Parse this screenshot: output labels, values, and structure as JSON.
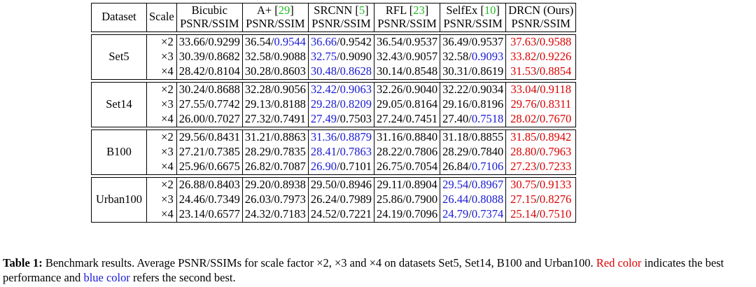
{
  "table": {
    "header_dataset": "Dataset",
    "header_scale": "Scale",
    "metric_label": "PSNR/SSIM",
    "methods": [
      {
        "name": "Bicubic",
        "ref": ""
      },
      {
        "name": "A+ [",
        "ref": "29",
        "close": "]"
      },
      {
        "name": "SRCNN [",
        "ref": "5",
        "close": "]"
      },
      {
        "name": "RFL [",
        "ref": "23",
        "close": "]"
      },
      {
        "name": "SelfEx [",
        "ref": "10",
        "close": "]"
      },
      {
        "name": "DRCN (Ours)",
        "ref": ""
      }
    ],
    "datasets": [
      {
        "name": "Set5",
        "rows": [
          {
            "scale": "×2",
            "cells": [
              {
                "psnr": "33.66",
                "ssim": "0.9299",
                "pc": "",
                "sc": ""
              },
              {
                "psnr": "36.54",
                "ssim": "0.9544",
                "pc": "",
                "sc": "blue"
              },
              {
                "psnr": "36.66",
                "ssim": "0.9542",
                "pc": "blue",
                "sc": ""
              },
              {
                "psnr": "36.54",
                "ssim": "0.9537",
                "pc": "",
                "sc": ""
              },
              {
                "psnr": "36.49",
                "ssim": "0.9537",
                "pc": "",
                "sc": ""
              },
              {
                "psnr": "37.63",
                "ssim": "0.9588",
                "pc": "red",
                "sc": "red"
              }
            ]
          },
          {
            "scale": "×3",
            "cells": [
              {
                "psnr": "30.39",
                "ssim": "0.8682",
                "pc": "",
                "sc": ""
              },
              {
                "psnr": "32.58",
                "ssim": "0.9088",
                "pc": "",
                "sc": ""
              },
              {
                "psnr": "32.75",
                "ssim": "0.9090",
                "pc": "blue",
                "sc": ""
              },
              {
                "psnr": "32.43",
                "ssim": "0.9057",
                "pc": "",
                "sc": ""
              },
              {
                "psnr": "32.58",
                "ssim": "0.9093",
                "pc": "",
                "sc": "blue"
              },
              {
                "psnr": "33.82",
                "ssim": "0.9226",
                "pc": "red",
                "sc": "red"
              }
            ]
          },
          {
            "scale": "×4",
            "cells": [
              {
                "psnr": "28.42",
                "ssim": "0.8104",
                "pc": "",
                "sc": ""
              },
              {
                "psnr": "30.28",
                "ssim": "0.8603",
                "pc": "",
                "sc": ""
              },
              {
                "psnr": "30.48",
                "ssim": "0.8628",
                "pc": "blue",
                "sc": "blue"
              },
              {
                "psnr": "30.14",
                "ssim": "0.8548",
                "pc": "",
                "sc": ""
              },
              {
                "psnr": "30.31",
                "ssim": "0.8619",
                "pc": "",
                "sc": ""
              },
              {
                "psnr": "31.53",
                "ssim": "0.8854",
                "pc": "red",
                "sc": "red"
              }
            ]
          }
        ]
      },
      {
        "name": "Set14",
        "rows": [
          {
            "scale": "×2",
            "cells": [
              {
                "psnr": "30.24",
                "ssim": "0.8688",
                "pc": "",
                "sc": ""
              },
              {
                "psnr": "32.28",
                "ssim": "0.9056",
                "pc": "",
                "sc": ""
              },
              {
                "psnr": "32.42",
                "ssim": "0.9063",
                "pc": "blue",
                "sc": "blue"
              },
              {
                "psnr": "32.26",
                "ssim": "0.9040",
                "pc": "",
                "sc": ""
              },
              {
                "psnr": "32.22",
                "ssim": "0.9034",
                "pc": "",
                "sc": ""
              },
              {
                "psnr": "33.04",
                "ssim": "0.9118",
                "pc": "red",
                "sc": "red"
              }
            ]
          },
          {
            "scale": "×3",
            "cells": [
              {
                "psnr": "27.55",
                "ssim": "0.7742",
                "pc": "",
                "sc": ""
              },
              {
                "psnr": "29.13",
                "ssim": "0.8188",
                "pc": "",
                "sc": ""
              },
              {
                "psnr": "29.28",
                "ssim": "0.8209",
                "pc": "blue",
                "sc": "blue"
              },
              {
                "psnr": "29.05",
                "ssim": "0.8164",
                "pc": "",
                "sc": ""
              },
              {
                "psnr": "29.16",
                "ssim": "0.8196",
                "pc": "",
                "sc": ""
              },
              {
                "psnr": "29.76",
                "ssim": "0.8311",
                "pc": "red",
                "sc": "red"
              }
            ]
          },
          {
            "scale": "×4",
            "cells": [
              {
                "psnr": "26.00",
                "ssim": "0.7027",
                "pc": "",
                "sc": ""
              },
              {
                "psnr": "27.32",
                "ssim": "0.7491",
                "pc": "",
                "sc": ""
              },
              {
                "psnr": "27.49",
                "ssim": "0.7503",
                "pc": "blue",
                "sc": ""
              },
              {
                "psnr": "27.24",
                "ssim": "0.7451",
                "pc": "",
                "sc": ""
              },
              {
                "psnr": "27.40",
                "ssim": "0.7518",
                "pc": "",
                "sc": "blue"
              },
              {
                "psnr": "28.02",
                "ssim": "0.7670",
                "pc": "red",
                "sc": "red"
              }
            ]
          }
        ]
      },
      {
        "name": "B100",
        "rows": [
          {
            "scale": "×2",
            "cells": [
              {
                "psnr": "29.56",
                "ssim": "0.8431",
                "pc": "",
                "sc": ""
              },
              {
                "psnr": "31.21",
                "ssim": "0.8863",
                "pc": "",
                "sc": ""
              },
              {
                "psnr": "31.36",
                "ssim": "0.8879",
                "pc": "blue",
                "sc": "blue"
              },
              {
                "psnr": "31.16",
                "ssim": "0.8840",
                "pc": "",
                "sc": ""
              },
              {
                "psnr": "31.18",
                "ssim": "0.8855",
                "pc": "",
                "sc": ""
              },
              {
                "psnr": "31.85",
                "ssim": "0.8942",
                "pc": "red",
                "sc": "red"
              }
            ]
          },
          {
            "scale": "×3",
            "cells": [
              {
                "psnr": "27.21",
                "ssim": "0.7385",
                "pc": "",
                "sc": ""
              },
              {
                "psnr": "28.29",
                "ssim": "0.7835",
                "pc": "",
                "sc": ""
              },
              {
                "psnr": "28.41",
                "ssim": "0.7863",
                "pc": "blue",
                "sc": "blue"
              },
              {
                "psnr": "28.22",
                "ssim": "0.7806",
                "pc": "",
                "sc": ""
              },
              {
                "psnr": "28.29",
                "ssim": "0.7840",
                "pc": "",
                "sc": ""
              },
              {
                "psnr": "28.80",
                "ssim": "0.7963",
                "pc": "red",
                "sc": "red"
              }
            ]
          },
          {
            "scale": "×4",
            "cells": [
              {
                "psnr": "25.96",
                "ssim": "0.6675",
                "pc": "",
                "sc": ""
              },
              {
                "psnr": "26.82",
                "ssim": "0.7087",
                "pc": "",
                "sc": ""
              },
              {
                "psnr": "26.90",
                "ssim": "0.7101",
                "pc": "blue",
                "sc": ""
              },
              {
                "psnr": "26.75",
                "ssim": "0.7054",
                "pc": "",
                "sc": ""
              },
              {
                "psnr": "26.84",
                "ssim": "0.7106",
                "pc": "",
                "sc": "blue"
              },
              {
                "psnr": "27.23",
                "ssim": "0.7233",
                "pc": "red",
                "sc": "red"
              }
            ]
          }
        ]
      },
      {
        "name": "Urban100",
        "rows": [
          {
            "scale": "×2",
            "cells": [
              {
                "psnr": "26.88",
                "ssim": "0.8403",
                "pc": "",
                "sc": ""
              },
              {
                "psnr": "29.20",
                "ssim": "0.8938",
                "pc": "",
                "sc": ""
              },
              {
                "psnr": "29.50",
                "ssim": "0.8946",
                "pc": "",
                "sc": ""
              },
              {
                "psnr": "29.11",
                "ssim": "0.8904",
                "pc": "",
                "sc": ""
              },
              {
                "psnr": "29.54",
                "ssim": "0.8967",
                "pc": "blue",
                "sc": "blue"
              },
              {
                "psnr": "30.75",
                "ssim": "0.9133",
                "pc": "red",
                "sc": "red"
              }
            ]
          },
          {
            "scale": "×3",
            "cells": [
              {
                "psnr": "24.46",
                "ssim": "0.7349",
                "pc": "",
                "sc": ""
              },
              {
                "psnr": "26.03",
                "ssim": "0.7973",
                "pc": "",
                "sc": ""
              },
              {
                "psnr": "26.24",
                "ssim": "0.7989",
                "pc": "",
                "sc": ""
              },
              {
                "psnr": "25.86",
                "ssim": "0.7900",
                "pc": "",
                "sc": ""
              },
              {
                "psnr": "26.44",
                "ssim": "0.8088",
                "pc": "blue",
                "sc": "blue"
              },
              {
                "psnr": "27.15",
                "ssim": "0.8276",
                "pc": "red",
                "sc": "red"
              }
            ]
          },
          {
            "scale": "×4",
            "cells": [
              {
                "psnr": "23.14",
                "ssim": "0.6577",
                "pc": "",
                "sc": ""
              },
              {
                "psnr": "24.32",
                "ssim": "0.7183",
                "pc": "",
                "sc": ""
              },
              {
                "psnr": "24.52",
                "ssim": "0.7221",
                "pc": "",
                "sc": ""
              },
              {
                "psnr": "24.19",
                "ssim": "0.7096",
                "pc": "",
                "sc": ""
              },
              {
                "psnr": "24.79",
                "ssim": "0.7374",
                "pc": "blue",
                "sc": "blue"
              },
              {
                "psnr": "25.14",
                "ssim": "0.7510",
                "pc": "red",
                "sc": "red"
              }
            ]
          }
        ]
      }
    ]
  },
  "caption": {
    "label": "Table 1:",
    "text_1": " Benchmark results.  Average PSNR/SSIMs for scale factor ×2, ×3 and ×4 on datasets Set5, Set14, B100 and Urban100. ",
    "red_text": "Red color",
    "text_2": " indicates the best performance and ",
    "blue_text": "blue color",
    "text_3": " refers the second best."
  },
  "colors": {
    "best": "#dd0000",
    "second": "#1a1ad6",
    "citation": "#22bb22"
  }
}
